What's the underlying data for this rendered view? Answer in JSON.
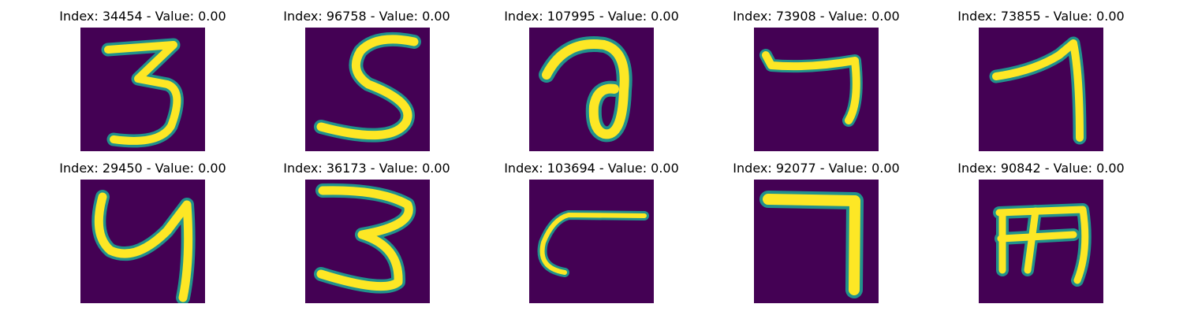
{
  "colors": {
    "background": "#440154",
    "stroke_core": "#fde725",
    "stroke_edge": "#21918c"
  },
  "panels": [
    {
      "title": "Index: 34454 - Value: 0.00",
      "digit": "3"
    },
    {
      "title": "Index: 96758 - Value: 0.00",
      "digit": "5"
    },
    {
      "title": "Index: 107995 - Value: 0.00",
      "digit": "a"
    },
    {
      "title": "Index: 73908 - Value: 0.00",
      "digit": "7"
    },
    {
      "title": "Index: 73855 - Value: 0.00",
      "digit": "1"
    },
    {
      "title": "Index: 29450 - Value: 0.00",
      "digit": "4"
    },
    {
      "title": "Index: 36173 - Value: 0.00",
      "digit": "3"
    },
    {
      "title": "Index: 103694 - Value: 0.00",
      "digit": "c"
    },
    {
      "title": "Index: 92077 - Value: 0.00",
      "digit": "7"
    },
    {
      "title": "Index: 90842 - Value: 0.00",
      "digit": "m"
    }
  ]
}
